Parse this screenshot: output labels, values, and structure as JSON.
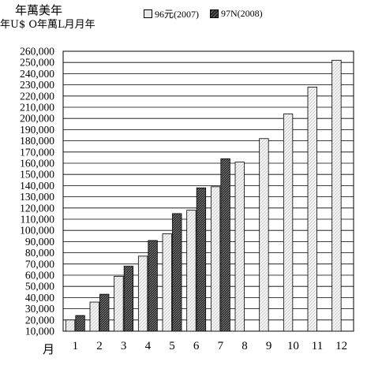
{
  "header": {
    "unit_title": "年萬美年",
    "unit_sub": "年U$ O年萬L月月年"
  },
  "legend": {
    "series_2007": "96元(2007)",
    "series_2008": "97N(2008)"
  },
  "x_axis_label": "月",
  "colors": {
    "series_2007_fill": "#e8e8e8",
    "series_2008_fill": "#333333",
    "grid": "#000000"
  },
  "chart_data": {
    "type": "bar",
    "categories": [
      "1",
      "2",
      "3",
      "4",
      "5",
      "6",
      "7",
      "8",
      "9",
      "10",
      "11",
      "12"
    ],
    "series": [
      {
        "name": "96元(2007)",
        "values": [
          20000,
          36000,
          59000,
          77000,
          97000,
          118000,
          139000,
          161000,
          182000,
          204000,
          228000,
          252000
        ]
      },
      {
        "name": "97N(2008)",
        "values": [
          24000,
          43000,
          68000,
          91000,
          115000,
          138000,
          164000,
          null,
          null,
          null,
          null,
          null
        ]
      }
    ],
    "ylim": [
      10000,
      260000
    ],
    "ytick_step": 10000,
    "ytick_labels": [
      "10,000",
      "20,000",
      "30,000",
      "40,000",
      "50,000",
      "60,000",
      "70,000",
      "80,000",
      "90,000",
      "100,000",
      "110,000",
      "120,000",
      "130,000",
      "140,000",
      "150,000",
      "160,000",
      "170,000",
      "180,000",
      "190,000",
      "200,000",
      "210,000",
      "220,000",
      "230,000",
      "240,000",
      "250,000",
      "260,000"
    ],
    "grid": true,
    "legend_position": "top"
  }
}
